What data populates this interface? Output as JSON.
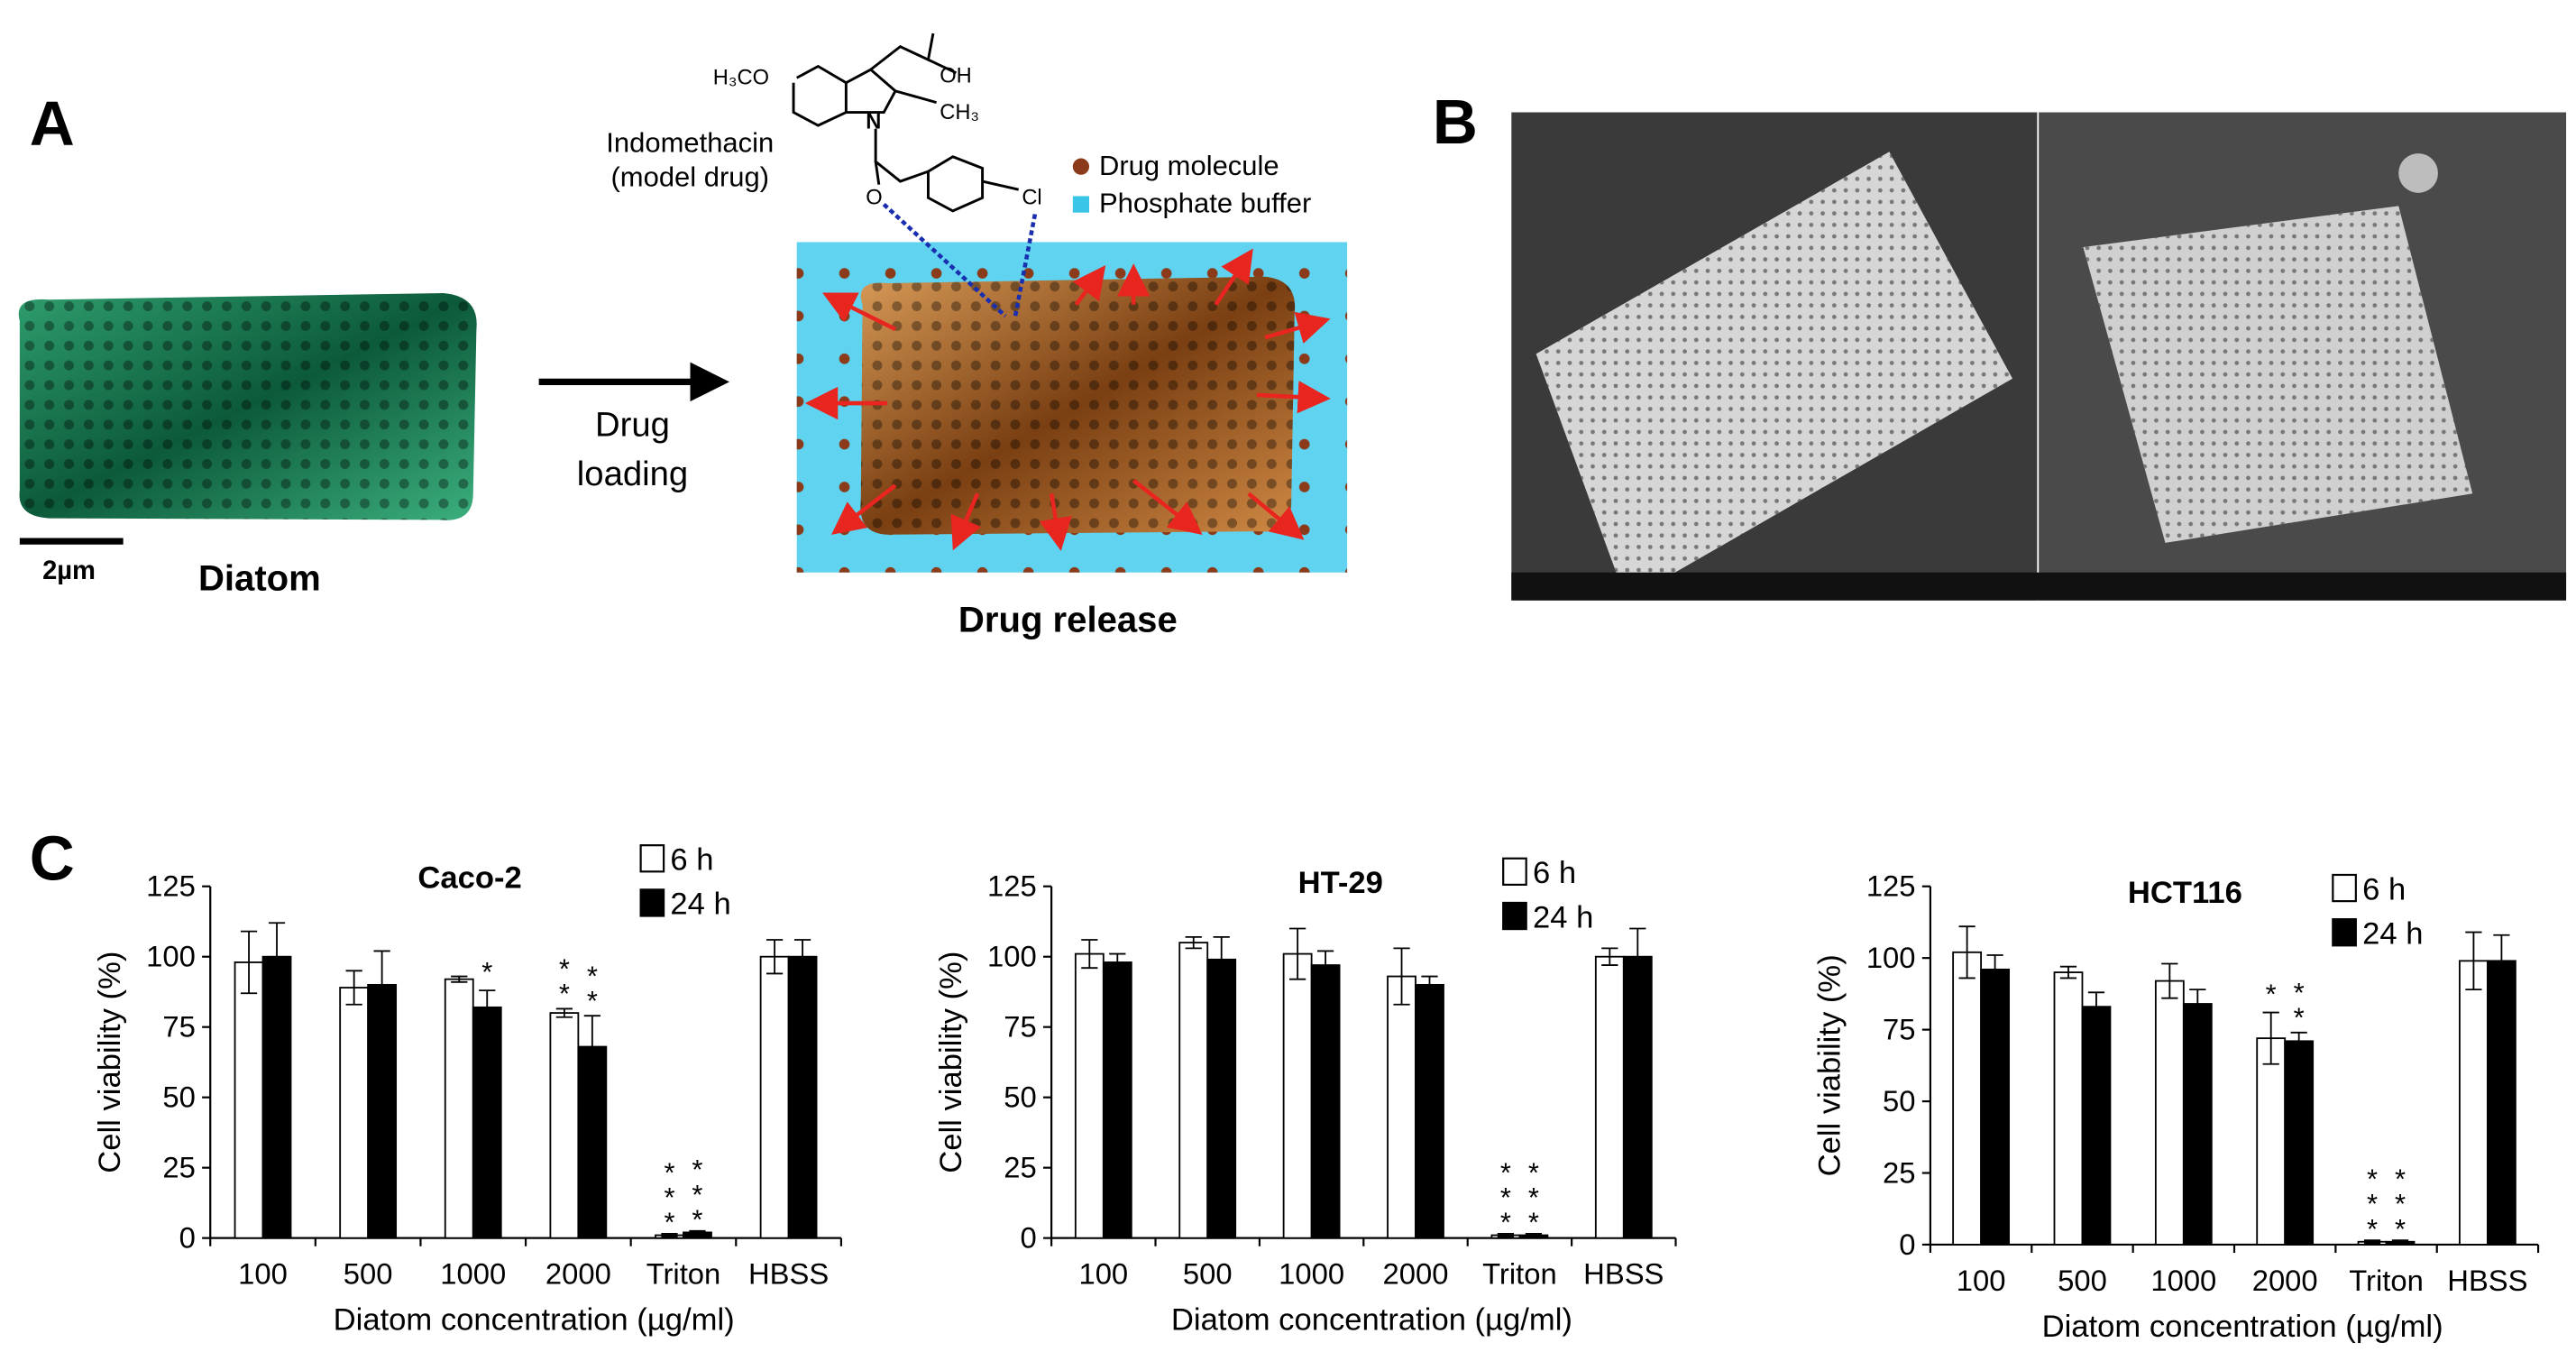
{
  "panel_a": {
    "label": "A",
    "scale_bar": "2µm",
    "specimen": "Diatom",
    "step": [
      "Drug",
      "loading"
    ],
    "drug_name": [
      "Indomethacin",
      "(model drug)"
    ],
    "structure_labels": [
      "H₃CO",
      "OH",
      "CH₃",
      "N",
      "O",
      "Cl"
    ],
    "legend": [
      "Drug molecule",
      "Phosphate buffer"
    ],
    "caption": "Drug release"
  },
  "panel_b": {
    "label": "B"
  },
  "panel_c": {
    "label": "C"
  },
  "chart_data": [
    {
      "type": "bar",
      "title": "Caco-2",
      "categories": [
        "100",
        "500",
        "1000",
        "2000",
        "Triton",
        "HBSS"
      ],
      "x_label": "Diatom concentration (µg/ml)",
      "y_label": "Cell viability (%)",
      "ylim": [
        0,
        125
      ],
      "yticks": [
        0,
        25,
        50,
        75,
        100,
        125
      ],
      "series": [
        {
          "name": "6 h",
          "color": "#ffffff",
          "values": [
            98,
            89,
            92,
            80,
            1,
            100
          ],
          "errors": [
            11,
            6,
            1,
            1.5,
            0.5,
            6
          ],
          "significance": [
            null,
            null,
            null,
            "**",
            "***",
            null
          ]
        },
        {
          "name": "24 h",
          "color": "#000000",
          "values": [
            100,
            90,
            82,
            68,
            2,
            100
          ],
          "errors": [
            12,
            12,
            6,
            11,
            0.5,
            6
          ],
          "significance": [
            null,
            null,
            "*",
            "**",
            "***",
            null
          ]
        }
      ]
    },
    {
      "type": "bar",
      "title": "HT-29",
      "categories": [
        "100",
        "500",
        "1000",
        "2000",
        "Triton",
        "HBSS"
      ],
      "x_label": "Diatom concentration (µg/ml)",
      "y_label": "Cell viability (%)",
      "ylim": [
        0,
        125
      ],
      "yticks": [
        0,
        25,
        50,
        75,
        100,
        125
      ],
      "series": [
        {
          "name": "6 h",
          "color": "#ffffff",
          "values": [
            101,
            105,
            101,
            93,
            1,
            100
          ],
          "errors": [
            5,
            2,
            9,
            10,
            0.5,
            3
          ],
          "significance": [
            null,
            null,
            null,
            null,
            "***",
            null
          ]
        },
        {
          "name": "24 h",
          "color": "#000000",
          "values": [
            98,
            99,
            97,
            90,
            1,
            100
          ],
          "errors": [
            3,
            8,
            5,
            3,
            0.5,
            10
          ],
          "significance": [
            null,
            null,
            null,
            null,
            "***",
            null
          ]
        }
      ]
    },
    {
      "type": "bar",
      "title": "HCT116",
      "categories": [
        "100",
        "500",
        "1000",
        "2000",
        "Triton",
        "HBSS"
      ],
      "x_label": "Diatom concentration (µg/ml)",
      "y_label": "Cell viability (%)",
      "ylim": [
        0,
        125
      ],
      "yticks": [
        0,
        25,
        50,
        75,
        100,
        125
      ],
      "series": [
        {
          "name": "6 h",
          "color": "#ffffff",
          "values": [
            102,
            95,
            92,
            72,
            1,
            99
          ],
          "errors": [
            9,
            2,
            6,
            9,
            0.5,
            10
          ],
          "significance": [
            null,
            null,
            null,
            "*",
            "***",
            null
          ]
        },
        {
          "name": "24 h",
          "color": "#000000",
          "values": [
            96,
            83,
            84,
            71,
            1,
            99
          ],
          "errors": [
            5,
            5,
            5,
            3,
            0.5,
            9
          ],
          "significance": [
            null,
            null,
            null,
            "**",
            "***",
            null
          ]
        }
      ]
    }
  ]
}
